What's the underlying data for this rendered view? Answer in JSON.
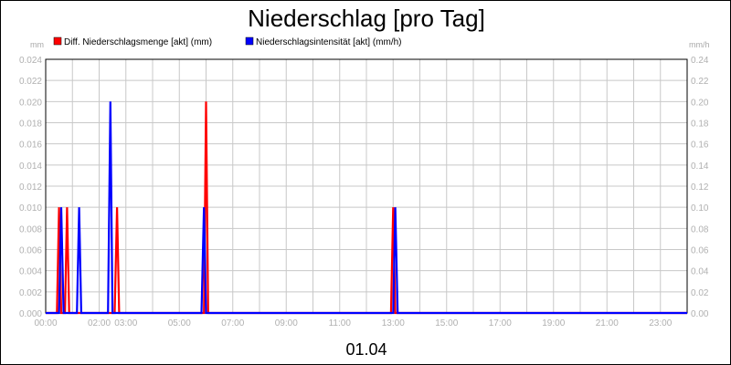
{
  "chart_data": {
    "type": "line",
    "title": "Niederschlag [pro Tag]",
    "xlabel": "01.04",
    "ylabel_left": "mm",
    "ylabel_right": "mm/h",
    "x_range": [
      0,
      24
    ],
    "x_ticks": [
      "00:00",
      "02:00",
      "03:00",
      "05:00",
      "07:00",
      "09:00",
      "11:00",
      "13:00",
      "15:00",
      "17:00",
      "19:00",
      "21:00",
      "23:00"
    ],
    "x_tick_hours": [
      0,
      2,
      3,
      5,
      7,
      9,
      11,
      13,
      15,
      17,
      19,
      21,
      23
    ],
    "y_left": {
      "range": [
        0,
        0.024
      ],
      "ticks": [
        "0.000",
        "0.002",
        "0.004",
        "0.006",
        "0.008",
        "0.010",
        "0.012",
        "0.014",
        "0.016",
        "0.018",
        "0.020",
        "0.022",
        "0.024"
      ]
    },
    "y_right": {
      "range": [
        0,
        0.24
      ],
      "ticks": [
        "0.00",
        "0.02",
        "0.04",
        "0.06",
        "0.08",
        "0.10",
        "0.12",
        "0.14",
        "0.16",
        "0.18",
        "0.20",
        "0.22",
        "0.24"
      ]
    },
    "grid": true,
    "legend_position": "top-left",
    "series": [
      {
        "name": "Diff. Niederschlagsmenge [akt] (mm)",
        "axis": "left",
        "color": "#ff0000",
        "points": [
          [
            0,
            0
          ],
          [
            0.42,
            0
          ],
          [
            0.5,
            0.01
          ],
          [
            0.58,
            0
          ],
          [
            0.72,
            0
          ],
          [
            0.8,
            0.01
          ],
          [
            0.88,
            0
          ],
          [
            2.58,
            0
          ],
          [
            2.67,
            0.01
          ],
          [
            2.75,
            0
          ],
          [
            5.92,
            0
          ],
          [
            6.0,
            0.02
          ],
          [
            6.08,
            0
          ],
          [
            12.92,
            0
          ],
          [
            13.0,
            0.01
          ],
          [
            13.08,
            0
          ],
          [
            24,
            0
          ]
        ]
      },
      {
        "name": "Niederschlagsintensität [akt] (mm/h)",
        "axis": "right",
        "color": "#0000ff",
        "points": [
          [
            0,
            0
          ],
          [
            0.5,
            0
          ],
          [
            0.58,
            0.1
          ],
          [
            0.67,
            0
          ],
          [
            1.17,
            0
          ],
          [
            1.25,
            0.1
          ],
          [
            1.33,
            0
          ],
          [
            2.33,
            0
          ],
          [
            2.42,
            0.2
          ],
          [
            2.5,
            0
          ],
          [
            5.83,
            0
          ],
          [
            5.92,
            0.1
          ],
          [
            6.0,
            0
          ],
          [
            13.0,
            0
          ],
          [
            13.08,
            0.1
          ],
          [
            13.17,
            0
          ],
          [
            24,
            0
          ]
        ]
      }
    ]
  }
}
